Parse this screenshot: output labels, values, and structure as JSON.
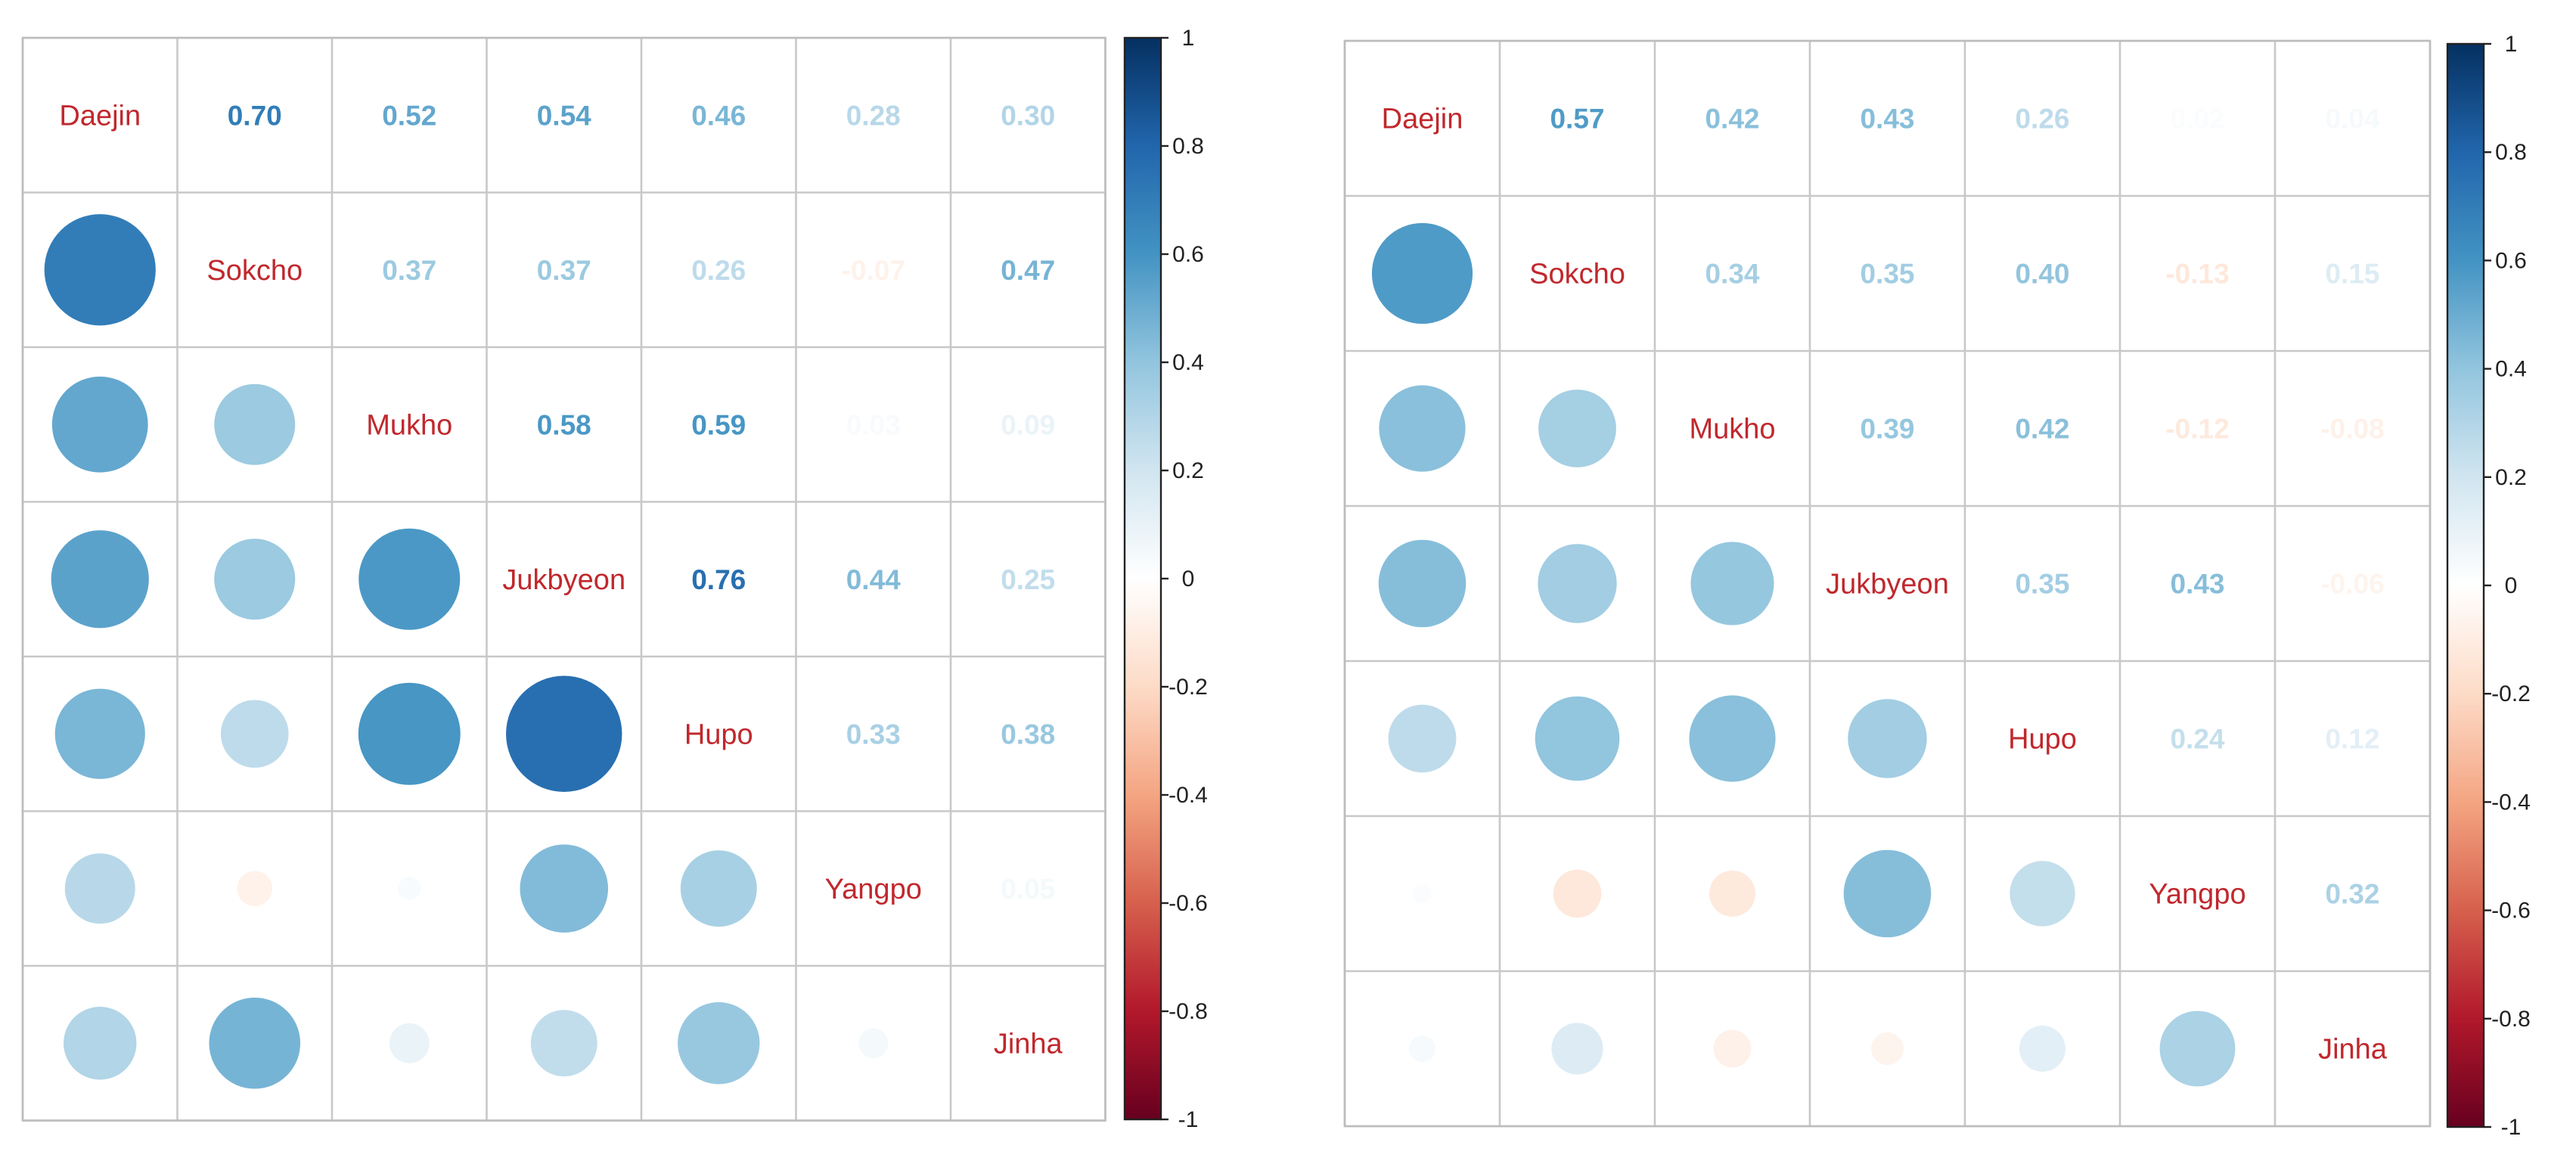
{
  "chart_data": [
    {
      "type": "heatmap",
      "variables": [
        "Daejin",
        "Sokcho",
        "Mukho",
        "Jukbyeon",
        "Hupo",
        "Yangpo",
        "Jinha"
      ],
      "lower_method": "circle",
      "upper_method": "number",
      "matrix": [
        [
          1.0,
          0.7,
          0.52,
          0.54,
          0.46,
          0.28,
          0.3
        ],
        [
          0.7,
          1.0,
          0.37,
          0.37,
          0.26,
          -0.07,
          0.47
        ],
        [
          0.52,
          0.37,
          1.0,
          0.58,
          0.59,
          0.03,
          0.09
        ],
        [
          0.54,
          0.37,
          0.58,
          1.0,
          0.76,
          0.44,
          0.25
        ],
        [
          0.46,
          0.26,
          0.59,
          0.76,
          1.0,
          0.33,
          0.38
        ],
        [
          0.28,
          -0.07,
          0.03,
          0.44,
          0.33,
          1.0,
          0.05
        ],
        [
          0.3,
          0.47,
          0.09,
          0.25,
          0.38,
          0.05,
          1.0
        ]
      ],
      "number_labels": [
        [
          "",
          "0.70",
          "0.52",
          "0.54",
          "0.46",
          "0.28",
          "0.30"
        ],
        [
          "",
          "",
          "0.37",
          "0.37",
          "0.26",
          "-0.07",
          "0.47"
        ],
        [
          "",
          "",
          "",
          "0.58",
          "0.59",
          "0.03",
          "0.09"
        ],
        [
          "",
          "",
          "",
          "",
          "0.76",
          "0.44",
          "0.25"
        ],
        [
          "",
          "",
          "",
          "",
          "",
          "0.33",
          "0.38"
        ],
        [
          "",
          "",
          "",
          "",
          "",
          "",
          "0.05"
        ],
        [
          "",
          "",
          "",
          "",
          "",
          "",
          ""
        ]
      ],
      "colorbar": {
        "range": [
          -1,
          1
        ],
        "ticks": [
          "1",
          "0.8",
          "0.6",
          "0.4",
          "0.2",
          "0",
          "-0.2",
          "-0.4",
          "-0.6",
          "-0.8",
          "-1"
        ]
      }
    },
    {
      "type": "heatmap",
      "variables": [
        "Daejin",
        "Sokcho",
        "Mukho",
        "Jukbyeon",
        "Hupo",
        "Yangpo",
        "Jinha"
      ],
      "lower_method": "circle",
      "upper_method": "number",
      "matrix": [
        [
          1.0,
          0.57,
          0.42,
          0.43,
          0.26,
          0.02,
          0.04
        ],
        [
          0.57,
          1.0,
          0.34,
          0.35,
          0.4,
          -0.13,
          0.15
        ],
        [
          0.42,
          0.34,
          1.0,
          0.39,
          0.42,
          -0.12,
          -0.08
        ],
        [
          0.43,
          0.35,
          0.39,
          1.0,
          0.35,
          0.43,
          -0.06
        ],
        [
          0.26,
          0.4,
          0.42,
          0.35,
          1.0,
          0.24,
          0.12
        ],
        [
          0.02,
          -0.13,
          -0.12,
          0.43,
          0.24,
          1.0,
          0.32
        ],
        [
          0.04,
          0.15,
          -0.08,
          -0.06,
          0.12,
          0.32,
          1.0
        ]
      ],
      "number_labels": [
        [
          "",
          "0.57",
          "0.42",
          "0.43",
          "0.26",
          "0.02",
          "0.04"
        ],
        [
          "",
          "",
          "0.34",
          "0.35",
          "0.40",
          "-0.13",
          "0.15"
        ],
        [
          "",
          "",
          "",
          "0.39",
          "0.42",
          "-0.12",
          "-0.08"
        ],
        [
          "",
          "",
          "",
          "",
          "0.35",
          "0.43",
          "-0.06"
        ],
        [
          "",
          "",
          "",
          "",
          "",
          "0.24",
          "0.12"
        ],
        [
          "",
          "",
          "",
          "",
          "",
          "",
          "0.32"
        ],
        [
          "",
          "",
          "",
          "",
          "",
          "",
          ""
        ]
      ],
      "colorbar": {
        "range": [
          -1,
          1
        ],
        "ticks": [
          "1",
          "0.8",
          "0.6",
          "0.4",
          "0.2",
          "0",
          "-0.2",
          "-0.4",
          "-0.6",
          "-0.8",
          "-1"
        ]
      }
    }
  ],
  "colors": {
    "label_red": "#c0282d",
    "grid": "#c8c8c8",
    "palette_stops": [
      "#67001f",
      "#b2182b",
      "#d6604d",
      "#f4a582",
      "#fddbc7",
      "#ffffff",
      "#d1e5f0",
      "#92c5de",
      "#4393c3",
      "#2166ac",
      "#053061"
    ]
  }
}
